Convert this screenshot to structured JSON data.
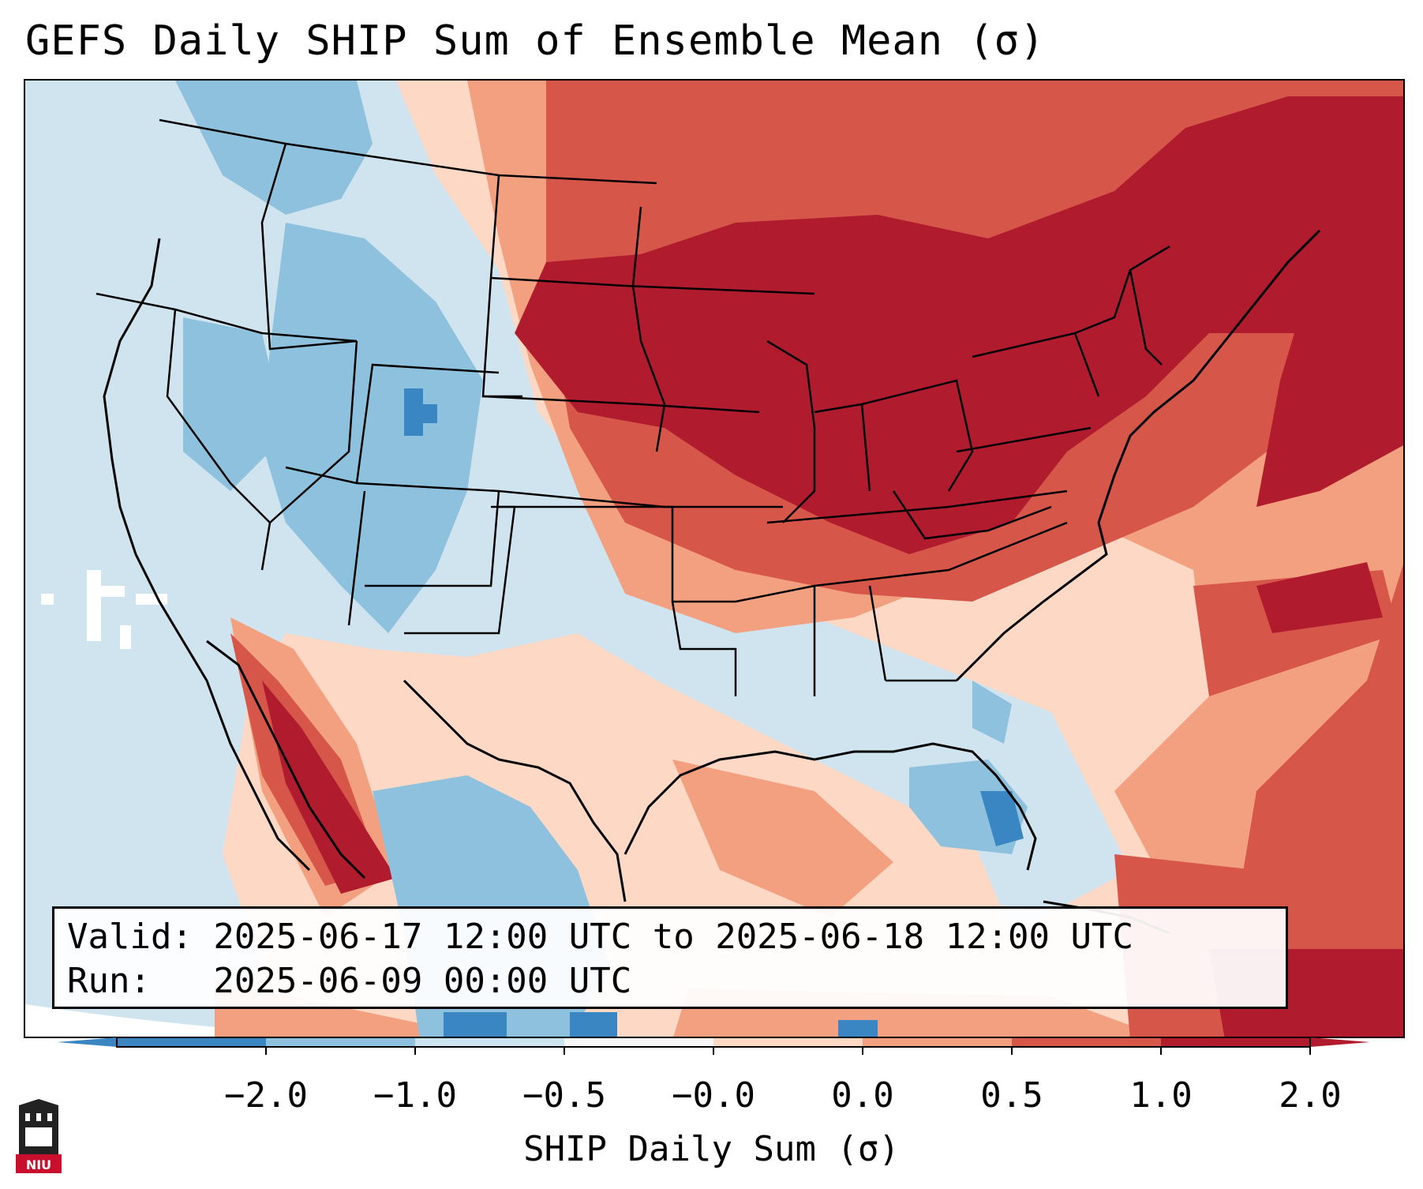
{
  "title": "GEFS Daily SHIP Sum of Ensemble Mean (σ)",
  "info": {
    "valid_line": "Valid: 2025-06-17 12:00 UTC to 2025-06-18 12:00 UTC",
    "run_line": "Run:   2025-06-09 00:00 UTC"
  },
  "colorbar": {
    "label": "SHIP Daily Sum (σ)",
    "ticks": [
      "−2.0",
      "−1.0",
      "−0.5",
      "−0.0",
      "0.0",
      "0.5",
      "1.0",
      "2.0"
    ],
    "colors": [
      "#3a86c2",
      "#8ec1dd",
      "#cde3f0",
      "#f7f7f7",
      "#fdd8c4",
      "#f2a07f",
      "#d6574a",
      "#b01c2e"
    ],
    "extend": "both"
  },
  "map": {
    "region": "CONUS",
    "field": "SHIP daily sum anomaly",
    "palette": {
      "strong_negative": "#3a86c2",
      "negative": "#8ec1dd",
      "weak_negative": "#cde3f0",
      "weak_positive": "#fdd8c4",
      "positive": "#f2a07f",
      "strong_positive": "#d6574a",
      "very_strong_positive": "#b01c2e"
    }
  },
  "logo": {
    "text": "NIU",
    "icon": "university-tower-logo"
  }
}
